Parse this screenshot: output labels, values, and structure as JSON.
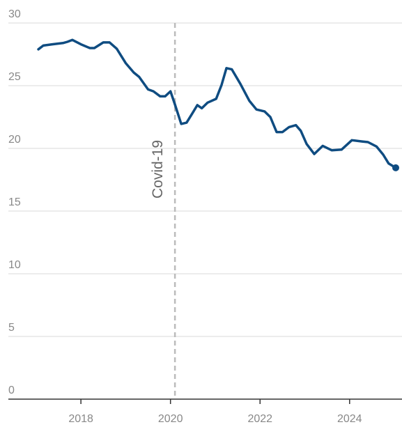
{
  "chart_data": {
    "type": "line",
    "x": [
      2017.05,
      2017.16,
      2017.36,
      2017.6,
      2017.7,
      2017.81,
      2018.0,
      2018.2,
      2018.3,
      2018.5,
      2018.64,
      2018.8,
      2019.0,
      2019.18,
      2019.3,
      2019.5,
      2019.62,
      2019.77,
      2019.88,
      2020.0,
      2020.1,
      2020.24,
      2020.36,
      2020.49,
      2020.6,
      2020.7,
      2020.83,
      2021.02,
      2021.14,
      2021.25,
      2021.37,
      2021.56,
      2021.76,
      2021.92,
      2022.1,
      2022.23,
      2022.37,
      2022.5,
      2022.65,
      2022.8,
      2022.91,
      2023.04,
      2023.21,
      2023.4,
      2023.6,
      2023.82,
      2024.05,
      2024.28,
      2024.41,
      2024.6,
      2024.75,
      2024.87,
      2025.03
    ],
    "series": [
      {
        "color": "#0f4c81",
        "values": [
          27.9,
          28.2,
          28.3,
          28.4,
          28.5,
          28.65,
          28.3,
          28.0,
          28.0,
          28.45,
          28.45,
          27.95,
          26.8,
          26.05,
          25.7,
          24.7,
          24.55,
          24.15,
          24.15,
          24.55,
          23.5,
          21.95,
          22.05,
          22.8,
          23.45,
          23.2,
          23.65,
          23.95,
          25.05,
          26.4,
          26.3,
          25.15,
          23.8,
          23.1,
          22.95,
          22.5,
          21.3,
          21.3,
          21.7,
          21.85,
          21.4,
          20.35,
          19.55,
          20.2,
          19.85,
          19.9,
          20.65,
          20.55,
          20.5,
          20.15,
          19.5,
          18.8,
          18.45
        ]
      }
    ],
    "xlim": [
      2016.38,
      2025.17
    ],
    "xticks": [
      2018,
      2020,
      2022,
      2024
    ],
    "ylim": [
      0,
      30
    ],
    "yticks": [
      0,
      5,
      10,
      15,
      20,
      25,
      30
    ],
    "grid": true,
    "annotations": [
      {
        "text": "Covid-19",
        "x": 2020.1
      }
    ]
  }
}
